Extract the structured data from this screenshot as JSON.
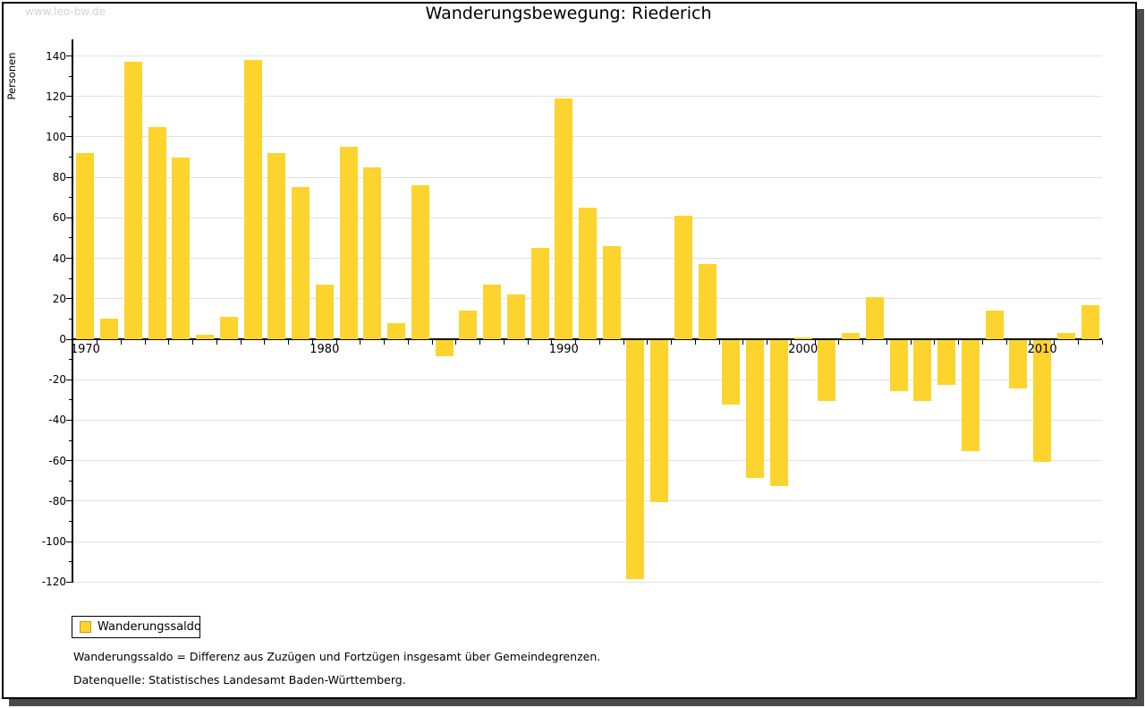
{
  "frame": {
    "watermark": "www.leo-bw.de"
  },
  "header": {
    "title": "Wanderungsbewegung: Riederich"
  },
  "legend": {
    "label": "Wanderungssaldo"
  },
  "notes": {
    "definition": "Wanderungssaldo = Differenz aus Zuzügen und Fortzügen insgesamt über Gemeindegrenzen.",
    "source": "Datenquelle: Statistisches Landesamt Baden-Württemberg."
  },
  "colors": {
    "bar": "#fcd42d",
    "legend_swatch_border": "#c59e06",
    "grid": "#e1e1e1",
    "axis": "#000000",
    "watermark": "#d4d4d4",
    "frame_shadow": "#4b4b4b"
  },
  "chart_data": {
    "type": "bar",
    "title": "Wanderungsbewegung: Riederich",
    "xlabel": "",
    "ylabel": "Personen",
    "ylim": [
      -120,
      140
    ],
    "ytick_major_step": 20,
    "ytick_minor_step": 10,
    "grid": true,
    "legend_position": "bottom-left",
    "series_name": "Wanderungssaldo",
    "years": [
      1970,
      1971,
      1972,
      1973,
      1974,
      1975,
      1976,
      1977,
      1978,
      1979,
      1980,
      1981,
      1982,
      1983,
      1984,
      1985,
      1986,
      1987,
      1988,
      1989,
      1990,
      1991,
      1992,
      1993,
      1994,
      1995,
      1996,
      1997,
      1998,
      1999,
      2000,
      2001,
      2002,
      2003,
      2004,
      2005,
      2006,
      2007,
      2008,
      2009,
      2010,
      2011,
      2012
    ],
    "values": [
      92,
      10,
      137,
      105,
      90,
      2,
      11,
      138,
      92,
      75,
      27,
      95,
      85,
      8,
      76,
      -8,
      14,
      27,
      22,
      45,
      119,
      65,
      46,
      -118,
      -80,
      61,
      37,
      -32,
      -68,
      -72,
      1,
      -30,
      3,
      21,
      -25,
      -30,
      -22,
      -55,
      14,
      -24,
      -60,
      3,
      17
    ],
    "xtick_labeled_years": [
      1970,
      1980,
      1990,
      2000,
      2010
    ]
  }
}
